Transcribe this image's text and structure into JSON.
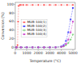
{
  "chart_data": {
    "type": "line",
    "xlabel": "Temperature (°C)",
    "ylabel": "Conversion (%)",
    "xlim": [
      0,
      5200
    ],
    "ylim": [
      -5,
      105
    ],
    "xticks": [
      0,
      1000,
      2000,
      3000,
      4000,
      5000
    ],
    "yticks": [
      0,
      20,
      40,
      60,
      80,
      100
    ],
    "legend": "left",
    "series": [
      {
        "name": "MUB-100(1)",
        "color": "#ff6666",
        "marker": "square",
        "line_style": "dashed",
        "x": [
          100,
          150,
          200,
          250,
          300,
          400,
          500,
          700,
          1000,
          1500,
          2000,
          2500,
          3000,
          3500,
          4000,
          4500,
          5000
        ],
        "values": [
          0,
          0,
          5,
          60,
          97,
          99,
          99,
          99,
          99,
          99,
          99,
          99,
          99,
          99,
          99,
          99,
          99
        ]
      },
      {
        "name": "MUB-100(2)",
        "color": "#4444ff",
        "marker": "square",
        "line_style": "dashed",
        "x": [
          100,
          500,
          1000,
          1500,
          2000,
          2500,
          3000,
          3500,
          4000,
          4200,
          4400,
          4600,
          4800,
          5000
        ],
        "values": [
          0,
          0,
          0,
          0,
          0,
          0,
          0,
          0,
          2,
          5,
          15,
          35,
          65,
          92
        ]
      },
      {
        "name": "MUB-100(3)",
        "color": "#44bb44",
        "marker": "plus",
        "line_style": "dashed",
        "x": [
          100,
          500,
          1000,
          1500,
          2000,
          2500,
          3000,
          3500,
          4000,
          4200,
          4400,
          4600,
          4800,
          5000
        ],
        "values": [
          0,
          0,
          0,
          0,
          0,
          0,
          0,
          0,
          1,
          2,
          5,
          10,
          18,
          30
        ]
      },
      {
        "name": "MUB-100(4)",
        "color": "#cc44cc",
        "marker": "square",
        "line_style": "dashed",
        "x": [
          100,
          500,
          1000,
          1500,
          2000,
          2500,
          3000,
          3500,
          4000,
          4200,
          4400,
          4600,
          4800,
          5000
        ],
        "values": [
          0,
          0,
          0,
          0,
          0,
          0,
          0,
          0,
          1,
          3,
          8,
          18,
          35,
          60
        ]
      }
    ]
  }
}
